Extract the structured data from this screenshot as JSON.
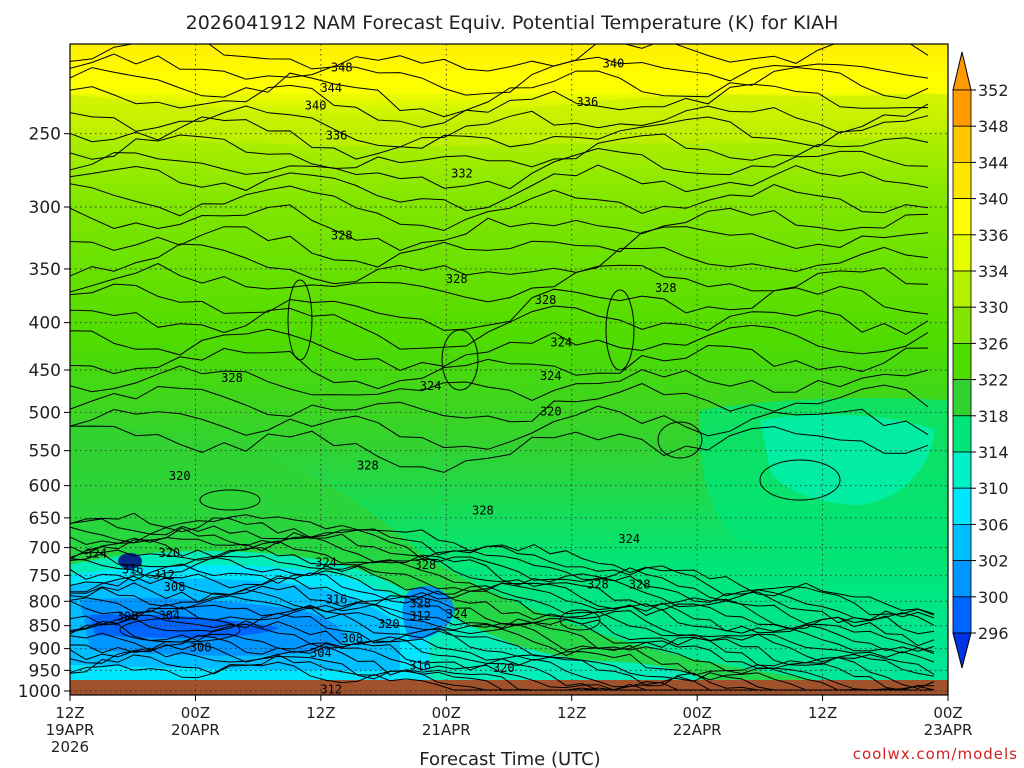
{
  "chart_data": {
    "type": "heatmap",
    "title": "2026041912 NAM Forecast Equiv. Potential Temperature (K) for KIAH",
    "xlabel": "Forecast Time (UTC)",
    "ylabel": "",
    "credit": "coolwx.com/models",
    "x_ticks": [
      {
        "hours": 0,
        "line1": "12Z",
        "line2": "19APR",
        "line3": "2026"
      },
      {
        "hours": 12,
        "line1": "00Z",
        "line2": "20APR",
        "line3": ""
      },
      {
        "hours": 24,
        "line1": "12Z",
        "line2": "",
        "line3": ""
      },
      {
        "hours": 36,
        "line1": "00Z",
        "line2": "21APR",
        "line3": ""
      },
      {
        "hours": 48,
        "line1": "12Z",
        "line2": "",
        "line3": ""
      },
      {
        "hours": 60,
        "line1": "00Z",
        "line2": "22APR",
        "line3": ""
      },
      {
        "hours": 72,
        "line1": "12Z",
        "line2": "",
        "line3": ""
      },
      {
        "hours": 84,
        "line1": "00Z",
        "line2": "23APR",
        "line3": ""
      }
    ],
    "x_range_hours": [
      0,
      84
    ],
    "y_ticks": [
      "250",
      "300",
      "350",
      "400",
      "450",
      "500",
      "550",
      "600",
      "650",
      "700",
      "750",
      "800",
      "850",
      "900",
      "950",
      "1000"
    ],
    "y_range_hPa": [
      1010,
      200
    ],
    "y_scale": "log",
    "grid": "dotted",
    "colorbar": {
      "labels": [
        "352",
        "348",
        "344",
        "340",
        "336",
        "334",
        "330",
        "326",
        "322",
        "318",
        "314",
        "310",
        "306",
        "302",
        "300",
        "296"
      ],
      "colors": [
        "#ff9a00",
        "#ffc800",
        "#ffe600",
        "#ffff00",
        "#e6ff00",
        "#b4f000",
        "#82e600",
        "#50dc00",
        "#32d232",
        "#00e678",
        "#00f0c8",
        "#00e6ff",
        "#00beff",
        "#0096ff",
        "#0064ff",
        "#0032e6"
      ]
    },
    "contour_labels": [
      {
        "text": "348",
        "t": 26.0,
        "p": 212
      },
      {
        "text": "344",
        "t": 25.0,
        "p": 223
      },
      {
        "text": "340",
        "t": 23.5,
        "p": 233
      },
      {
        "text": "336",
        "t": 25.5,
        "p": 251
      },
      {
        "text": "340",
        "t": 52.0,
        "p": 210
      },
      {
        "text": "336",
        "t": 49.5,
        "p": 231
      },
      {
        "text": "332",
        "t": 37.5,
        "p": 276
      },
      {
        "text": "328",
        "t": 26.0,
        "p": 322
      },
      {
        "text": "328",
        "t": 37.0,
        "p": 359
      },
      {
        "text": "328",
        "t": 45.5,
        "p": 378
      },
      {
        "text": "328",
        "t": 57.0,
        "p": 367
      },
      {
        "text": "324",
        "t": 47.0,
        "p": 420
      },
      {
        "text": "324",
        "t": 34.5,
        "p": 468
      },
      {
        "text": "324",
        "t": 46.0,
        "p": 457
      },
      {
        "text": "328",
        "t": 15.5,
        "p": 459
      },
      {
        "text": "320",
        "t": 46.0,
        "p": 499
      },
      {
        "text": "320",
        "t": 10.5,
        "p": 586
      },
      {
        "text": "328",
        "t": 28.5,
        "p": 571
      },
      {
        "text": "328",
        "t": 39.5,
        "p": 638
      },
      {
        "text": "324",
        "t": 2.5,
        "p": 710
      },
      {
        "text": "320",
        "t": 9.5,
        "p": 709
      },
      {
        "text": "316",
        "t": 6.0,
        "p": 739
      },
      {
        "text": "312",
        "t": 9.0,
        "p": 749
      },
      {
        "text": "308",
        "t": 10.0,
        "p": 772
      },
      {
        "text": "324",
        "t": 24.5,
        "p": 726
      },
      {
        "text": "328",
        "t": 34.0,
        "p": 731
      },
      {
        "text": "324",
        "t": 53.5,
        "p": 685
      },
      {
        "text": "328",
        "t": 50.5,
        "p": 767
      },
      {
        "text": "328",
        "t": 54.5,
        "p": 767
      },
      {
        "text": "316",
        "t": 25.5,
        "p": 796
      },
      {
        "text": "328",
        "t": 33.5,
        "p": 804
      },
      {
        "text": "312",
        "t": 33.5,
        "p": 830
      },
      {
        "text": "324",
        "t": 37.0,
        "p": 826
      },
      {
        "text": "320",
        "t": 30.5,
        "p": 846
      },
      {
        "text": "308",
        "t": 5.5,
        "p": 831
      },
      {
        "text": "304",
        "t": 9.5,
        "p": 829
      },
      {
        "text": "308",
        "t": 27.0,
        "p": 878
      },
      {
        "text": "300",
        "t": 12.5,
        "p": 897
      },
      {
        "text": "304",
        "t": 24.0,
        "p": 910
      },
      {
        "text": "316",
        "t": 33.5,
        "p": 939
      },
      {
        "text": "320",
        "t": 41.5,
        "p": 944
      },
      {
        "text": "312",
        "t": 25.0,
        "p": 996
      }
    ]
  }
}
